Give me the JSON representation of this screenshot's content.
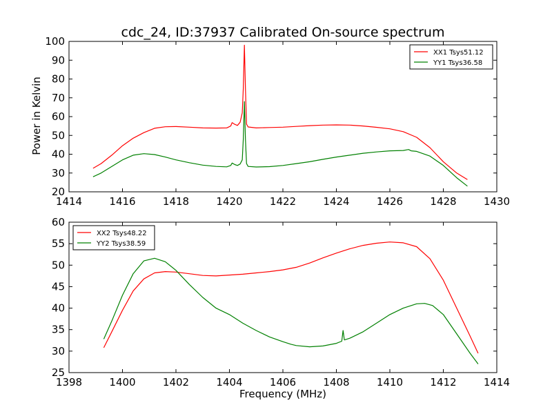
{
  "chart_data": [
    {
      "type": "line",
      "title": "cdc_24, ID:37937 Calibrated On-source spectrum",
      "xlabel": "",
      "ylabel": "Power in Kelvin",
      "xlim": [
        1414,
        1430
      ],
      "ylim": [
        20,
        100
      ],
      "xticks": [
        "1414",
        "1416",
        "1418",
        "1420",
        "1422",
        "1424",
        "1426",
        "1428",
        "1430"
      ],
      "yticks": [
        "20",
        "30",
        "40",
        "50",
        "60",
        "70",
        "80",
        "90",
        "100"
      ],
      "legend": "top-right",
      "series": [
        {
          "name": "XX1 Tsys51.12",
          "color": "#ff0000",
          "points": [
            [
              1414.9,
              32.5
            ],
            [
              1415.2,
              35
            ],
            [
              1415.6,
              39.5
            ],
            [
              1416.0,
              44.5
            ],
            [
              1416.4,
              48.5
            ],
            [
              1416.8,
              51.5
            ],
            [
              1417.2,
              53.8
            ],
            [
              1417.6,
              54.6
            ],
            [
              1418.0,
              54.7
            ],
            [
              1418.5,
              54.4
            ],
            [
              1419.0,
              54.0
            ],
            [
              1419.5,
              53.9
            ],
            [
              1419.9,
              54.0
            ],
            [
              1420.05,
              55.0
            ],
            [
              1420.1,
              56.8
            ],
            [
              1420.2,
              55.9
            ],
            [
              1420.3,
              55.3
            ],
            [
              1420.4,
              57.0
            ],
            [
              1420.48,
              62.0
            ],
            [
              1420.52,
              75.0
            ],
            [
              1420.56,
              98.0
            ],
            [
              1420.6,
              75.0
            ],
            [
              1420.64,
              56.0
            ],
            [
              1420.7,
              54.5
            ],
            [
              1421.0,
              54.0
            ],
            [
              1421.5,
              54.2
            ],
            [
              1422.0,
              54.4
            ],
            [
              1422.5,
              54.8
            ],
            [
              1423.0,
              55.2
            ],
            [
              1423.5,
              55.5
            ],
            [
              1424.0,
              55.6
            ],
            [
              1424.5,
              55.5
            ],
            [
              1425.0,
              55.0
            ],
            [
              1425.5,
              54.3
            ],
            [
              1426.0,
              53.5
            ],
            [
              1426.5,
              52.0
            ],
            [
              1427.0,
              49.0
            ],
            [
              1427.5,
              43.5
            ],
            [
              1428.0,
              36.0
            ],
            [
              1428.5,
              30.0
            ],
            [
              1428.9,
              26.5
            ]
          ]
        },
        {
          "name": "YY1 Tsys36.58",
          "color": "#008000",
          "points": [
            [
              1414.9,
              28.0
            ],
            [
              1415.2,
              30
            ],
            [
              1415.6,
              33.5
            ],
            [
              1416.0,
              37.0
            ],
            [
              1416.4,
              39.5
            ],
            [
              1416.8,
              40.3
            ],
            [
              1417.2,
              39.8
            ],
            [
              1417.6,
              38.5
            ],
            [
              1418.0,
              37.0
            ],
            [
              1418.5,
              35.5
            ],
            [
              1419.0,
              34.2
            ],
            [
              1419.5,
              33.5
            ],
            [
              1419.9,
              33.3
            ],
            [
              1420.05,
              34.0
            ],
            [
              1420.1,
              35.3
            ],
            [
              1420.2,
              34.5
            ],
            [
              1420.3,
              34.0
            ],
            [
              1420.4,
              34.8
            ],
            [
              1420.48,
              37.0
            ],
            [
              1420.52,
              48.0
            ],
            [
              1420.56,
              68.0
            ],
            [
              1420.6,
              48.0
            ],
            [
              1420.64,
              35.0
            ],
            [
              1420.7,
              33.5
            ],
            [
              1421.0,
              33.2
            ],
            [
              1421.5,
              33.4
            ],
            [
              1422.0,
              34.0
            ],
            [
              1422.5,
              35.0
            ],
            [
              1423.0,
              36.0
            ],
            [
              1423.5,
              37.3
            ],
            [
              1424.0,
              38.5
            ],
            [
              1424.5,
              39.5
            ],
            [
              1425.0,
              40.5
            ],
            [
              1425.5,
              41.2
            ],
            [
              1426.0,
              41.8
            ],
            [
              1426.5,
              42.0
            ],
            [
              1426.7,
              42.5
            ],
            [
              1426.8,
              41.8
            ],
            [
              1427.0,
              41.5
            ],
            [
              1427.5,
              39.0
            ],
            [
              1428.0,
              34.0
            ],
            [
              1428.5,
              27.5
            ],
            [
              1428.9,
              23.0
            ]
          ]
        }
      ]
    },
    {
      "type": "line",
      "title": "",
      "xlabel": "Frequency (MHz)",
      "ylabel": "",
      "xlim": [
        1398,
        1414
      ],
      "ylim": [
        25,
        60
      ],
      "xticks": [
        "1398",
        "1400",
        "1402",
        "1404",
        "1406",
        "1408",
        "1410",
        "1412",
        "1414"
      ],
      "yticks": [
        "25",
        "30",
        "35",
        "40",
        "45",
        "50",
        "55",
        "60"
      ],
      "legend": "top-left",
      "series": [
        {
          "name": "XX2 Tsys48.22",
          "color": "#ff0000",
          "points": [
            [
              1399.3,
              30.8
            ],
            [
              1399.6,
              34.5
            ],
            [
              1400.0,
              39.5
            ],
            [
              1400.4,
              44.0
            ],
            [
              1400.8,
              46.8
            ],
            [
              1401.2,
              48.2
            ],
            [
              1401.6,
              48.5
            ],
            [
              1402.0,
              48.4
            ],
            [
              1402.5,
              48.0
            ],
            [
              1403.0,
              47.6
            ],
            [
              1403.5,
              47.5
            ],
            [
              1404.0,
              47.7
            ],
            [
              1404.5,
              47.9
            ],
            [
              1405.0,
              48.2
            ],
            [
              1405.5,
              48.5
            ],
            [
              1406.0,
              48.9
            ],
            [
              1406.5,
              49.5
            ],
            [
              1407.0,
              50.5
            ],
            [
              1407.5,
              51.7
            ],
            [
              1408.0,
              52.8
            ],
            [
              1408.5,
              53.8
            ],
            [
              1409.0,
              54.6
            ],
            [
              1409.5,
              55.1
            ],
            [
              1410.0,
              55.4
            ],
            [
              1410.5,
              55.2
            ],
            [
              1411.0,
              54.3
            ],
            [
              1411.5,
              51.5
            ],
            [
              1412.0,
              46.5
            ],
            [
              1412.5,
              40.0
            ],
            [
              1413.0,
              33.5
            ],
            [
              1413.3,
              29.5
            ]
          ]
        },
        {
          "name": "YY2 Tsys38.59",
          "color": "#008000",
          "points": [
            [
              1399.3,
              32.8
            ],
            [
              1399.6,
              37.0
            ],
            [
              1400.0,
              43.0
            ],
            [
              1400.4,
              48.0
            ],
            [
              1400.8,
              51.0
            ],
            [
              1401.2,
              51.6
            ],
            [
              1401.6,
              50.8
            ],
            [
              1402.0,
              48.8
            ],
            [
              1402.5,
              45.5
            ],
            [
              1403.0,
              42.5
            ],
            [
              1403.5,
              40.0
            ],
            [
              1404.0,
              38.5
            ],
            [
              1404.5,
              36.5
            ],
            [
              1405.0,
              34.8
            ],
            [
              1405.5,
              33.3
            ],
            [
              1406.0,
              32.2
            ],
            [
              1406.3,
              31.6
            ],
            [
              1406.5,
              31.3
            ],
            [
              1407.0,
              31.0
            ],
            [
              1407.5,
              31.2
            ],
            [
              1408.0,
              31.8
            ],
            [
              1408.2,
              32.3
            ],
            [
              1408.25,
              34.8
            ],
            [
              1408.3,
              32.6
            ],
            [
              1408.5,
              33.0
            ],
            [
              1409.0,
              34.5
            ],
            [
              1409.5,
              36.5
            ],
            [
              1410.0,
              38.5
            ],
            [
              1410.5,
              40.0
            ],
            [
              1411.0,
              41.0
            ],
            [
              1411.3,
              41.1
            ],
            [
              1411.6,
              40.6
            ],
            [
              1412.0,
              38.5
            ],
            [
              1412.5,
              34.0
            ],
            [
              1413.0,
              29.5
            ],
            [
              1413.3,
              27.0
            ]
          ]
        }
      ]
    }
  ]
}
